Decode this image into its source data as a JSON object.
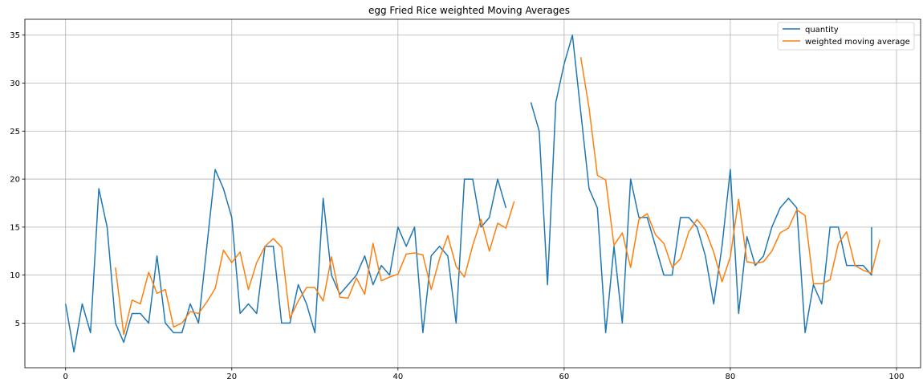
{
  "chart_data": {
    "type": "line",
    "title": "egg Fried Rice weighted Moving Averages",
    "xlabel": "",
    "ylabel": "",
    "xlim": [
      -4.9,
      102.9
    ],
    "ylim": [
      0.35,
      36.65
    ],
    "x_ticks": [
      0,
      20,
      40,
      60,
      80,
      100
    ],
    "y_ticks": [
      5,
      10,
      15,
      20,
      25,
      30,
      35
    ],
    "grid": true,
    "legend_position": "top-right",
    "series": [
      {
        "name": "quantity",
        "color": "#1f77b4",
        "points": [
          [
            0,
            7
          ],
          [
            1,
            2
          ],
          [
            2,
            7
          ],
          [
            3,
            4
          ],
          [
            4,
            19
          ],
          [
            5,
            15
          ],
          [
            6,
            5
          ],
          [
            7,
            3
          ],
          [
            8,
            6
          ],
          [
            9,
            6
          ],
          [
            10,
            5
          ],
          [
            11,
            12
          ],
          [
            12,
            5
          ],
          [
            13,
            4
          ],
          [
            14,
            4
          ],
          [
            15,
            7
          ],
          [
            16,
            5
          ],
          [
            17,
            13
          ],
          [
            18,
            21
          ],
          [
            19,
            19
          ],
          [
            20,
            16
          ],
          [
            21,
            6
          ],
          [
            22,
            7
          ],
          [
            23,
            6
          ],
          [
            24,
            13
          ],
          [
            25,
            13
          ],
          [
            26,
            5
          ],
          [
            27,
            5
          ],
          [
            28,
            9
          ],
          [
            29,
            7
          ],
          [
            30,
            4
          ],
          [
            31,
            18
          ],
          [
            32,
            10
          ],
          [
            33,
            8
          ],
          [
            34,
            9
          ],
          [
            35,
            10
          ],
          [
            36,
            12
          ],
          [
            37,
            9
          ],
          [
            38,
            11
          ],
          [
            39,
            10
          ],
          [
            40,
            15
          ],
          [
            41,
            13
          ],
          [
            42,
            15
          ],
          [
            43,
            4
          ],
          [
            44,
            12
          ],
          [
            45,
            13
          ],
          [
            46,
            12
          ],
          [
            47,
            5
          ],
          [
            48,
            20
          ],
          [
            49,
            20
          ],
          [
            50,
            15
          ],
          [
            51,
            16
          ],
          [
            52,
            20
          ],
          [
            53,
            17
          ],
          null,
          null,
          [
            56,
            28
          ],
          [
            57,
            25
          ],
          [
            58,
            9
          ],
          [
            59,
            28
          ],
          [
            60,
            32
          ],
          [
            61,
            35
          ],
          [
            62,
            27
          ],
          [
            63,
            19
          ],
          [
            64,
            17
          ],
          [
            65,
            4
          ],
          [
            66,
            13
          ],
          [
            67,
            5
          ],
          [
            68,
            20
          ],
          [
            69,
            16
          ],
          [
            70,
            16
          ],
          [
            71,
            13
          ],
          [
            72,
            10
          ],
          [
            73,
            10
          ],
          [
            74,
            16
          ],
          [
            75,
            16
          ],
          [
            76,
            15
          ],
          [
            77,
            12
          ],
          [
            78,
            7
          ],
          [
            79,
            13
          ],
          [
            80,
            21
          ],
          [
            81,
            6
          ],
          [
            82,
            14
          ],
          [
            83,
            11
          ],
          [
            84,
            12
          ],
          [
            85,
            15
          ],
          [
            86,
            17
          ],
          [
            87,
            18
          ],
          [
            88,
            17
          ],
          [
            89,
            4
          ],
          [
            90,
            9
          ],
          [
            91,
            7
          ],
          [
            92,
            15
          ],
          [
            93,
            15
          ],
          [
            94,
            11
          ],
          [
            95,
            11
          ],
          [
            96,
            11
          ],
          [
            97,
            10
          ],
          [
            97,
            15
          ]
        ]
      },
      {
        "name": "weighted moving average",
        "color": "#ff7f0e",
        "points": [
          [
            6,
            10.8
          ],
          [
            7,
            3.8
          ],
          [
            8,
            7.4
          ],
          [
            9,
            7.0
          ],
          [
            10,
            10.3
          ],
          [
            11,
            8.1
          ],
          [
            12,
            8.5
          ],
          [
            13,
            4.6
          ],
          [
            14,
            5.0
          ],
          [
            15,
            6.2
          ],
          [
            16,
            6.0
          ],
          [
            17,
            7.2
          ],
          [
            18,
            8.6
          ],
          [
            19,
            12.6
          ],
          [
            20,
            11.3
          ],
          [
            21,
            12.4
          ],
          [
            22,
            8.5
          ],
          [
            23,
            11.3
          ],
          [
            24,
            13.0
          ],
          [
            25,
            13.8
          ],
          [
            26,
            12.9
          ],
          [
            27,
            5.5
          ],
          [
            28,
            7.3
          ],
          [
            29,
            8.7
          ],
          [
            30,
            8.7
          ],
          [
            31,
            7.3
          ],
          [
            32,
            11.9
          ],
          [
            33,
            7.7
          ],
          [
            34,
            7.6
          ],
          [
            35,
            9.7
          ],
          [
            36,
            8.0
          ],
          [
            37,
            13.3
          ],
          [
            38,
            9.4
          ],
          [
            39,
            9.8
          ],
          [
            40,
            10.1
          ],
          [
            41,
            12.2
          ],
          [
            42,
            12.3
          ],
          [
            43,
            12.1
          ],
          [
            44,
            8.5
          ],
          [
            45,
            11.7
          ],
          [
            46,
            14.1
          ],
          [
            47,
            10.9
          ],
          [
            48,
            9.8
          ],
          [
            49,
            13.1
          ],
          [
            50,
            15.8
          ],
          [
            51,
            12.5
          ],
          [
            52,
            15.4
          ],
          [
            53,
            14.9
          ],
          [
            54,
            17.7
          ],
          null,
          [
            62,
            32.7
          ],
          [
            63,
            27.4
          ],
          [
            64,
            20.4
          ],
          [
            65,
            19.9
          ],
          [
            66,
            13.1
          ],
          [
            67,
            14.4
          ],
          [
            68,
            10.8
          ],
          [
            69,
            15.8
          ],
          [
            70,
            16.4
          ],
          [
            71,
            14.2
          ],
          [
            72,
            13.3
          ],
          [
            73,
            10.8
          ],
          [
            74,
            11.7
          ],
          [
            75,
            14.5
          ],
          [
            76,
            15.8
          ],
          [
            77,
            14.7
          ],
          [
            78,
            12.4
          ],
          [
            79,
            9.3
          ],
          [
            80,
            11.9
          ],
          [
            81,
            17.9
          ],
          [
            82,
            11.4
          ],
          [
            83,
            11.2
          ],
          [
            84,
            11.4
          ],
          [
            85,
            12.5
          ],
          [
            86,
            14.4
          ],
          [
            87,
            14.9
          ],
          [
            88,
            16.8
          ],
          [
            89,
            16.2
          ],
          [
            90,
            9.1
          ],
          [
            91,
            9.1
          ],
          [
            92,
            9.5
          ],
          [
            93,
            13.3
          ],
          [
            94,
            14.5
          ],
          [
            95,
            11.0
          ],
          [
            96,
            10.5
          ],
          [
            97,
            10.2
          ],
          [
            98,
            13.7
          ]
        ]
      }
    ]
  }
}
